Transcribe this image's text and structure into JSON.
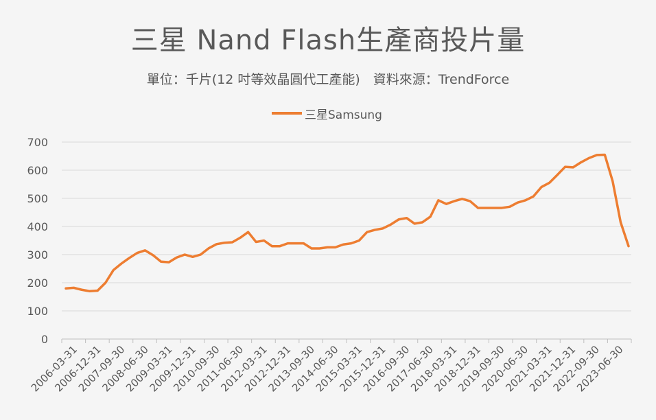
{
  "header": {
    "title": "三星 Nand Flash生產商投片量",
    "subtitle": "單位：千片(12 吋等效晶圓代工產能)　資料來源：TrendForce"
  },
  "colors": {
    "line": "#ED7D31",
    "grid": "#d9d9d9",
    "axis": "#bfbfbf",
    "text": "#595959",
    "background": "#f5f5f5"
  },
  "chart_data": {
    "type": "line",
    "title": "三星 Nand Flash生產商投片量",
    "subtitle": "單位：千片(12 吋等效晶圓代工產能)　資料來源：TrendForce",
    "xlabel": "",
    "ylabel": "",
    "ylim": [
      0,
      700
    ],
    "yticks": [
      0,
      100,
      200,
      300,
      400,
      500,
      600,
      700
    ],
    "grid": true,
    "legend_position": "top-center",
    "x_tick_labels": [
      "2006-03-31",
      "2006-12-31",
      "2007-09-30",
      "2008-06-30",
      "2009-03-31",
      "2009-12-31",
      "2010-09-30",
      "2011-06-30",
      "2012-03-31",
      "2012-12-31",
      "2013-09-30",
      "2014-06-30",
      "2015-03-31",
      "2015-12-31",
      "2016-09-30",
      "2017-06-30",
      "2018-03-31",
      "2018-12-31",
      "2019-09-30",
      "2020-06-30",
      "2021-03-31",
      "2021-12-31",
      "2022-09-30",
      "2023-06-30"
    ],
    "series": [
      {
        "name": "三星Samsung",
        "color": "#ED7D31",
        "values": [
          180,
          182,
          175,
          170,
          172,
          200,
          245,
          268,
          288,
          306,
          315,
          298,
          275,
          273,
          290,
          300,
          292,
          300,
          322,
          337,
          342,
          344,
          360,
          380,
          345,
          350,
          330,
          330,
          340,
          340,
          340,
          322,
          322,
          326,
          326,
          336,
          340,
          350,
          380,
          388,
          393,
          407,
          425,
          430,
          410,
          415,
          435,
          493,
          480,
          490,
          498,
          490,
          466,
          466,
          466,
          466,
          470,
          485,
          493,
          507,
          540,
          555,
          583,
          612,
          610,
          628,
          643,
          654,
          655,
          560,
          415,
          330
        ]
      }
    ]
  },
  "legend": {
    "label": "三星Samsung"
  }
}
